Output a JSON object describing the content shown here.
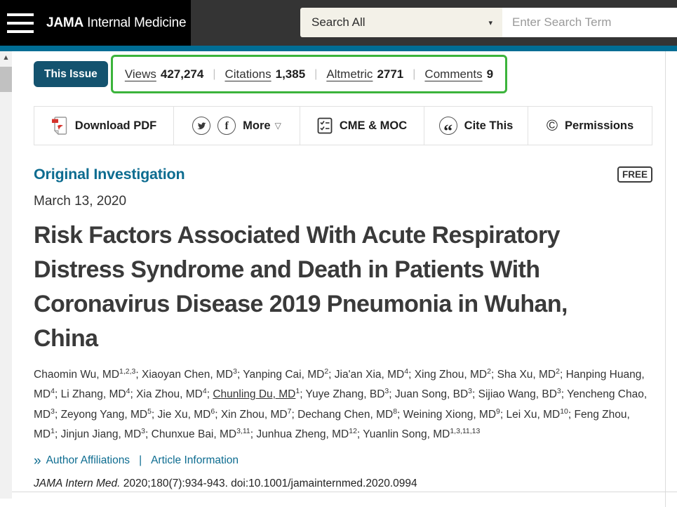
{
  "header": {
    "brand_bold": "JAMA",
    "brand_rest": " Internal Medicine",
    "search_scope": "Search All",
    "search_placeholder": "Enter Search Term"
  },
  "metrics_bar": {
    "this_issue_label": "This Issue",
    "separator": "|",
    "metrics": [
      {
        "label": "Views",
        "value": "427,274"
      },
      {
        "label": "Citations",
        "value": "1,385"
      },
      {
        "label": "Altmetric",
        "value": "2771"
      },
      {
        "label": "Comments",
        "value": "9"
      }
    ]
  },
  "toolbar": {
    "download_pdf": "Download PDF",
    "more": "More",
    "cme": "CME & MOC",
    "cite": "Cite This",
    "permissions": "Permissions"
  },
  "article": {
    "category": "Original Investigation",
    "access_badge": "FREE",
    "date": "March 13, 2020",
    "title": "Risk Factors Associated With Acute Respiratory Distress Syndrome and Death in Patients With Coronavirus Disease 2019 Pneumonia in Wuhan, China",
    "authors": [
      {
        "name": "Chaomin Wu, MD",
        "sup": "1,2,3"
      },
      {
        "name": "Xiaoyan Chen, MD",
        "sup": "3"
      },
      {
        "name": "Yanping Cai, MD",
        "sup": "2"
      },
      {
        "name": "Jia'an Xia, MD",
        "sup": "4"
      },
      {
        "name": "Xing Zhou, MD",
        "sup": "2"
      },
      {
        "name": "Sha Xu, MD",
        "sup": "2"
      },
      {
        "name": "Hanping Huang, MD",
        "sup": "4"
      },
      {
        "name": "Li Zhang, MD",
        "sup": "4"
      },
      {
        "name": "Xia Zhou, MD",
        "sup": "4"
      },
      {
        "name": "Chunling Du, MD",
        "sup": "1",
        "underline": true
      },
      {
        "name": "Yuye Zhang, BD",
        "sup": "3"
      },
      {
        "name": "Juan Song, BD",
        "sup": "3"
      },
      {
        "name": "Sijiao Wang, BD",
        "sup": "3"
      },
      {
        "name": "Yencheng Chao, MD",
        "sup": "3"
      },
      {
        "name": "Zeyong Yang, MD",
        "sup": "5"
      },
      {
        "name": "Jie Xu, MD",
        "sup": "6"
      },
      {
        "name": "Xin Zhou, MD",
        "sup": "7"
      },
      {
        "name": "Dechang Chen, MD",
        "sup": "8"
      },
      {
        "name": "Weining Xiong, MD",
        "sup": "9"
      },
      {
        "name": "Lei Xu, MD",
        "sup": "10"
      },
      {
        "name": "Feng Zhou, MD",
        "sup": "1"
      },
      {
        "name": "Jinjun Jiang, MD",
        "sup": "3"
      },
      {
        "name": "Chunxue Bai, MD",
        "sup": "3,11"
      },
      {
        "name": "Junhua Zheng, MD",
        "sup": "12"
      },
      {
        "name": "Yuanlin Song, MD",
        "sup": "1,3,11,13"
      }
    ],
    "links": {
      "affiliations": "Author Affiliations",
      "separator": "|",
      "article_info": "Article Information"
    },
    "citation": {
      "journal": "JAMA Intern Med.",
      "rest": " 2020;180(7):934-943. doi:10.1001/jamainternmed.2020.0994"
    }
  },
  "icons": {
    "dropdown_caret": "▾",
    "more_caret": "▽",
    "facebook_glyph": "f",
    "cite_quote_glyph": "“",
    "permissions_glyph": "©",
    "affiliations_chevrons": "»",
    "scroll_up_arrow": "▲"
  },
  "colors": {
    "teal_bar": "#006d94",
    "link_teal": "#0d6c90",
    "this_issue_button": "#14536f",
    "annotation_green": "#3cb43c",
    "header_dark": "#343434"
  }
}
